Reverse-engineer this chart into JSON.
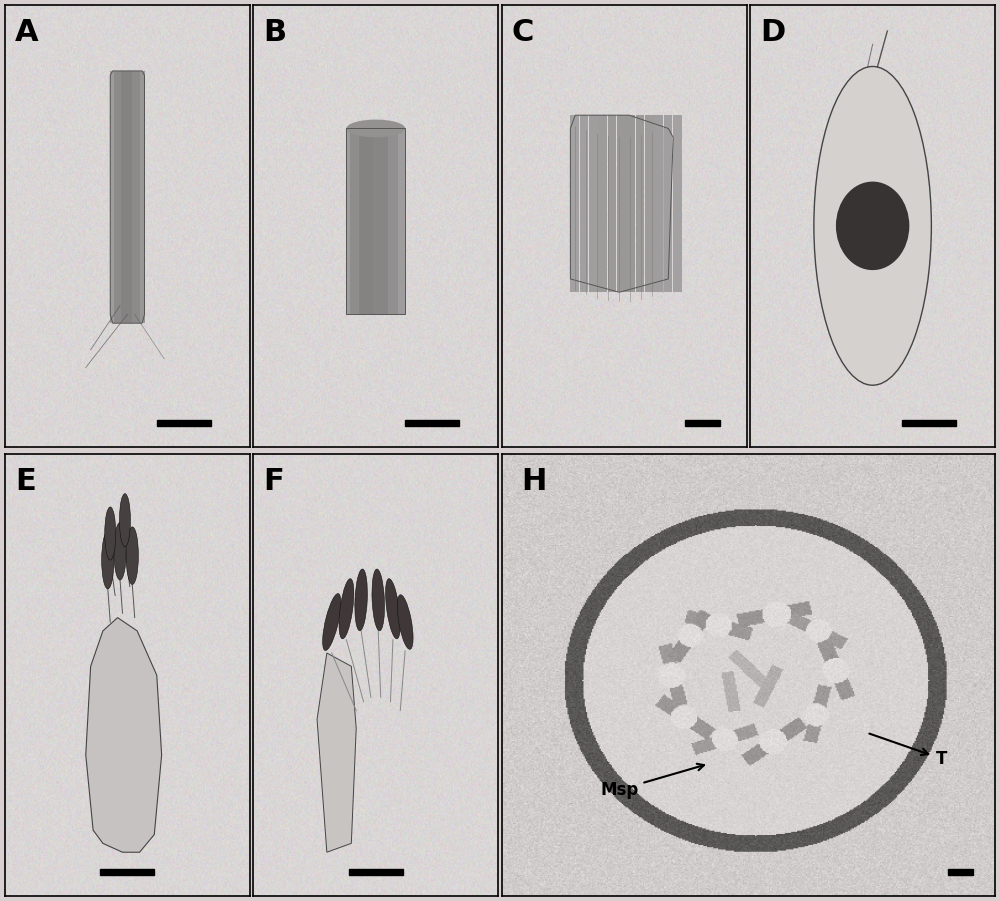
{
  "background_color": "#d8d0d0",
  "panel_bg": "#d8d0d0",
  "border_color": "#000000",
  "labels": [
    "A",
    "B",
    "C",
    "D",
    "E",
    "F",
    "H"
  ],
  "label_fontsize": 22,
  "label_fontweight": "bold",
  "annotation_fontsize": 12,
  "annotation_fontweight": "bold",
  "fig_width": 10.0,
  "fig_height": 9.01,
  "dpi": 100
}
